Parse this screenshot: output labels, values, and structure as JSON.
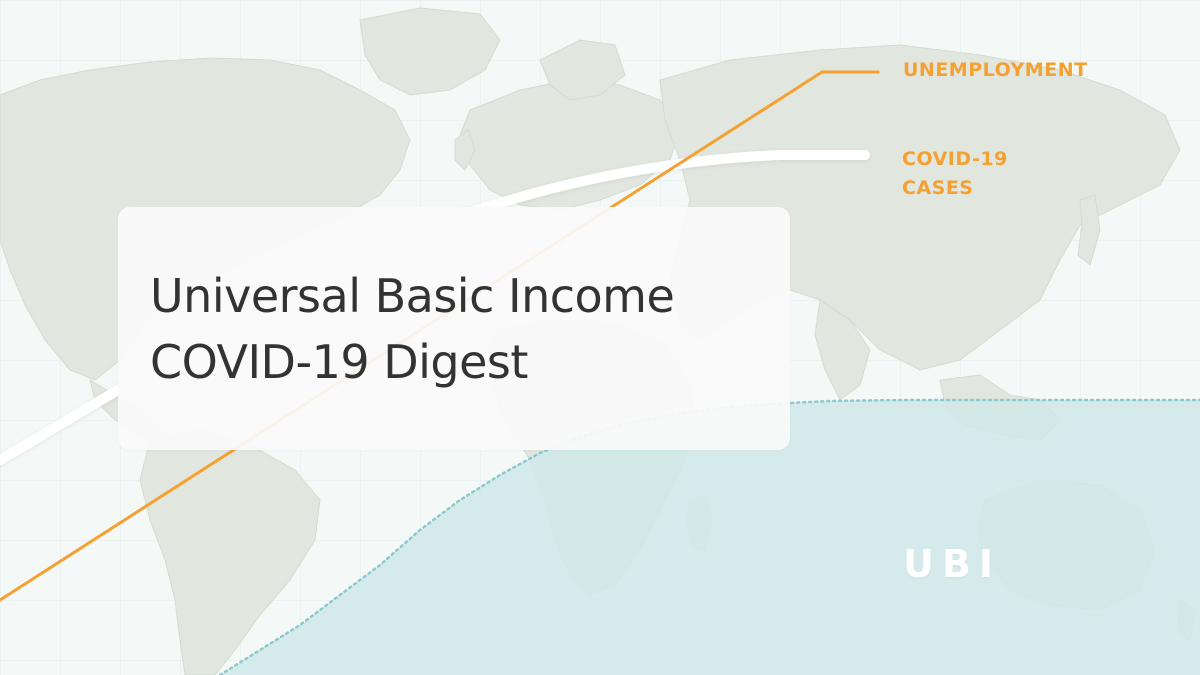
{
  "title": {
    "line1": "Universal Basic Income",
    "line2": "COVID-19 Digest"
  },
  "legend": {
    "unemployment": "UNEMPLOYMENT",
    "covid_line1": "COVID-19",
    "covid_line2": "CASES"
  },
  "area_label": "UBI",
  "colors": {
    "background": "#f4f9f8",
    "land": "#e1e7df",
    "grid": "#dbe8e9",
    "unemployment_line": "#f5a032",
    "covid_line": "#ffffff",
    "ubi_area": "#cfe9e9",
    "ubi_border": "#8cc9cf",
    "label_orange": "#f5a032",
    "title_text": "#333333"
  }
}
